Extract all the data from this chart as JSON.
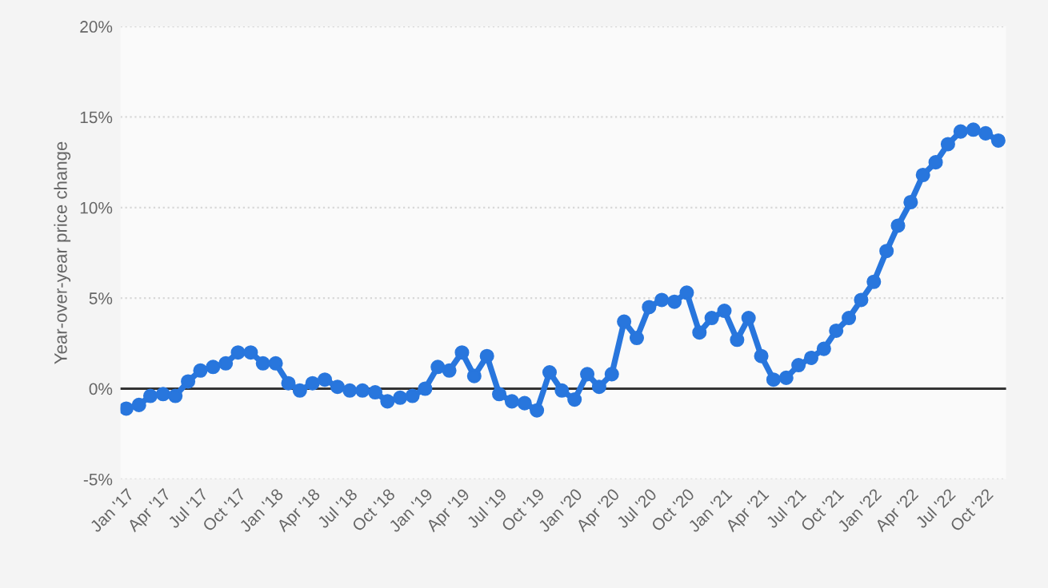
{
  "chart_data": {
    "type": "line",
    "ylabel": "Year-over-year price change",
    "x": [
      "2017-01",
      "2017-02",
      "2017-03",
      "2017-04",
      "2017-05",
      "2017-06",
      "2017-07",
      "2017-08",
      "2017-09",
      "2017-10",
      "2017-11",
      "2017-12",
      "2018-01",
      "2018-02",
      "2018-03",
      "2018-04",
      "2018-05",
      "2018-06",
      "2018-07",
      "2018-08",
      "2018-09",
      "2018-10",
      "2018-11",
      "2018-12",
      "2019-01",
      "2019-02",
      "2019-03",
      "2019-04",
      "2019-05",
      "2019-06",
      "2019-07",
      "2019-08",
      "2019-09",
      "2019-10",
      "2019-11",
      "2019-12",
      "2020-01",
      "2020-02",
      "2020-03",
      "2020-04",
      "2020-05",
      "2020-06",
      "2020-07",
      "2020-08",
      "2020-09",
      "2020-10",
      "2020-11",
      "2020-12",
      "2021-01",
      "2021-02",
      "2021-03",
      "2021-04",
      "2021-05",
      "2021-06",
      "2021-07",
      "2021-08",
      "2021-09",
      "2021-10",
      "2021-11",
      "2021-12",
      "2022-01",
      "2022-02",
      "2022-03",
      "2022-04",
      "2022-05",
      "2022-06",
      "2022-07",
      "2022-08",
      "2022-09",
      "2022-10",
      "2022-11"
    ],
    "series": [
      {
        "color": "#2876dd",
        "values": [
          -1.1,
          -0.9,
          -0.4,
          -0.3,
          -0.4,
          0.4,
          1.0,
          1.2,
          1.4,
          2.0,
          2.0,
          1.4,
          1.4,
          0.3,
          -0.1,
          0.3,
          0.5,
          0.1,
          -0.1,
          -0.1,
          -0.2,
          -0.7,
          -0.5,
          -0.4,
          0.0,
          1.2,
          1.0,
          2.0,
          0.7,
          1.8,
          -0.3,
          -0.7,
          -0.8,
          -1.2,
          0.9,
          -0.1,
          -0.6,
          0.8,
          0.1,
          0.8,
          3.7,
          2.8,
          4.5,
          4.9,
          4.8,
          5.3,
          3.1,
          3.9,
          4.3,
          2.7,
          3.9,
          1.8,
          0.5,
          0.6,
          1.3,
          1.7,
          2.2,
          3.2,
          3.9,
          4.9,
          5.9,
          7.6,
          9.0,
          10.3,
          11.8,
          12.5,
          13.5,
          14.2,
          14.3,
          14.1,
          13.7
        ]
      }
    ],
    "xlim": [
      "2016-12-18",
      "2022-11-20"
    ],
    "xticks": [
      {
        "value": "2017-01",
        "label": "Jan '17"
      },
      {
        "value": "2017-04",
        "label": "Apr '17"
      },
      {
        "value": "2017-07",
        "label": "Jul '17"
      },
      {
        "value": "2017-10",
        "label": "Oct '17"
      },
      {
        "value": "2018-01",
        "label": "Jan '18"
      },
      {
        "value": "2018-04",
        "label": "Apr '18"
      },
      {
        "value": "2018-07",
        "label": "Jul '18"
      },
      {
        "value": "2018-10",
        "label": "Oct '18"
      },
      {
        "value": "2019-01",
        "label": "Jan '19"
      },
      {
        "value": "2019-04",
        "label": "Apr '19"
      },
      {
        "value": "2019-07",
        "label": "Jul '19"
      },
      {
        "value": "2019-10",
        "label": "Oct '19"
      },
      {
        "value": "2020-01",
        "label": "Jan '20"
      },
      {
        "value": "2020-04",
        "label": "Apr '20"
      },
      {
        "value": "2020-07",
        "label": "Jul '20"
      },
      {
        "value": "2020-10",
        "label": "Oct '20"
      },
      {
        "value": "2021-01",
        "label": "Jan '21"
      },
      {
        "value": "2021-04",
        "label": "Apr '21"
      },
      {
        "value": "2021-07",
        "label": "Jul '21"
      },
      {
        "value": "2021-10",
        "label": "Oct '21"
      },
      {
        "value": "2022-01",
        "label": "Jan '22"
      },
      {
        "value": "2022-04",
        "label": "Apr '22"
      },
      {
        "value": "2022-07",
        "label": "Jul '22"
      },
      {
        "value": "2022-10",
        "label": "Oct '22"
      }
    ],
    "ylim": [
      -5,
      20
    ],
    "yticks": [
      {
        "value": -5,
        "label": "-5%"
      },
      {
        "value": 0,
        "label": "0%"
      },
      {
        "value": 5,
        "label": "5%"
      },
      {
        "value": 10,
        "label": "10%"
      },
      {
        "value": 15,
        "label": "15%"
      },
      {
        "value": 20,
        "label": "20%"
      }
    ],
    "ref_lines": [
      {
        "axis": "y",
        "value": 0,
        "color": "#333333"
      }
    ],
    "grid": "y",
    "marker": "circle",
    "line_style": "solid"
  }
}
